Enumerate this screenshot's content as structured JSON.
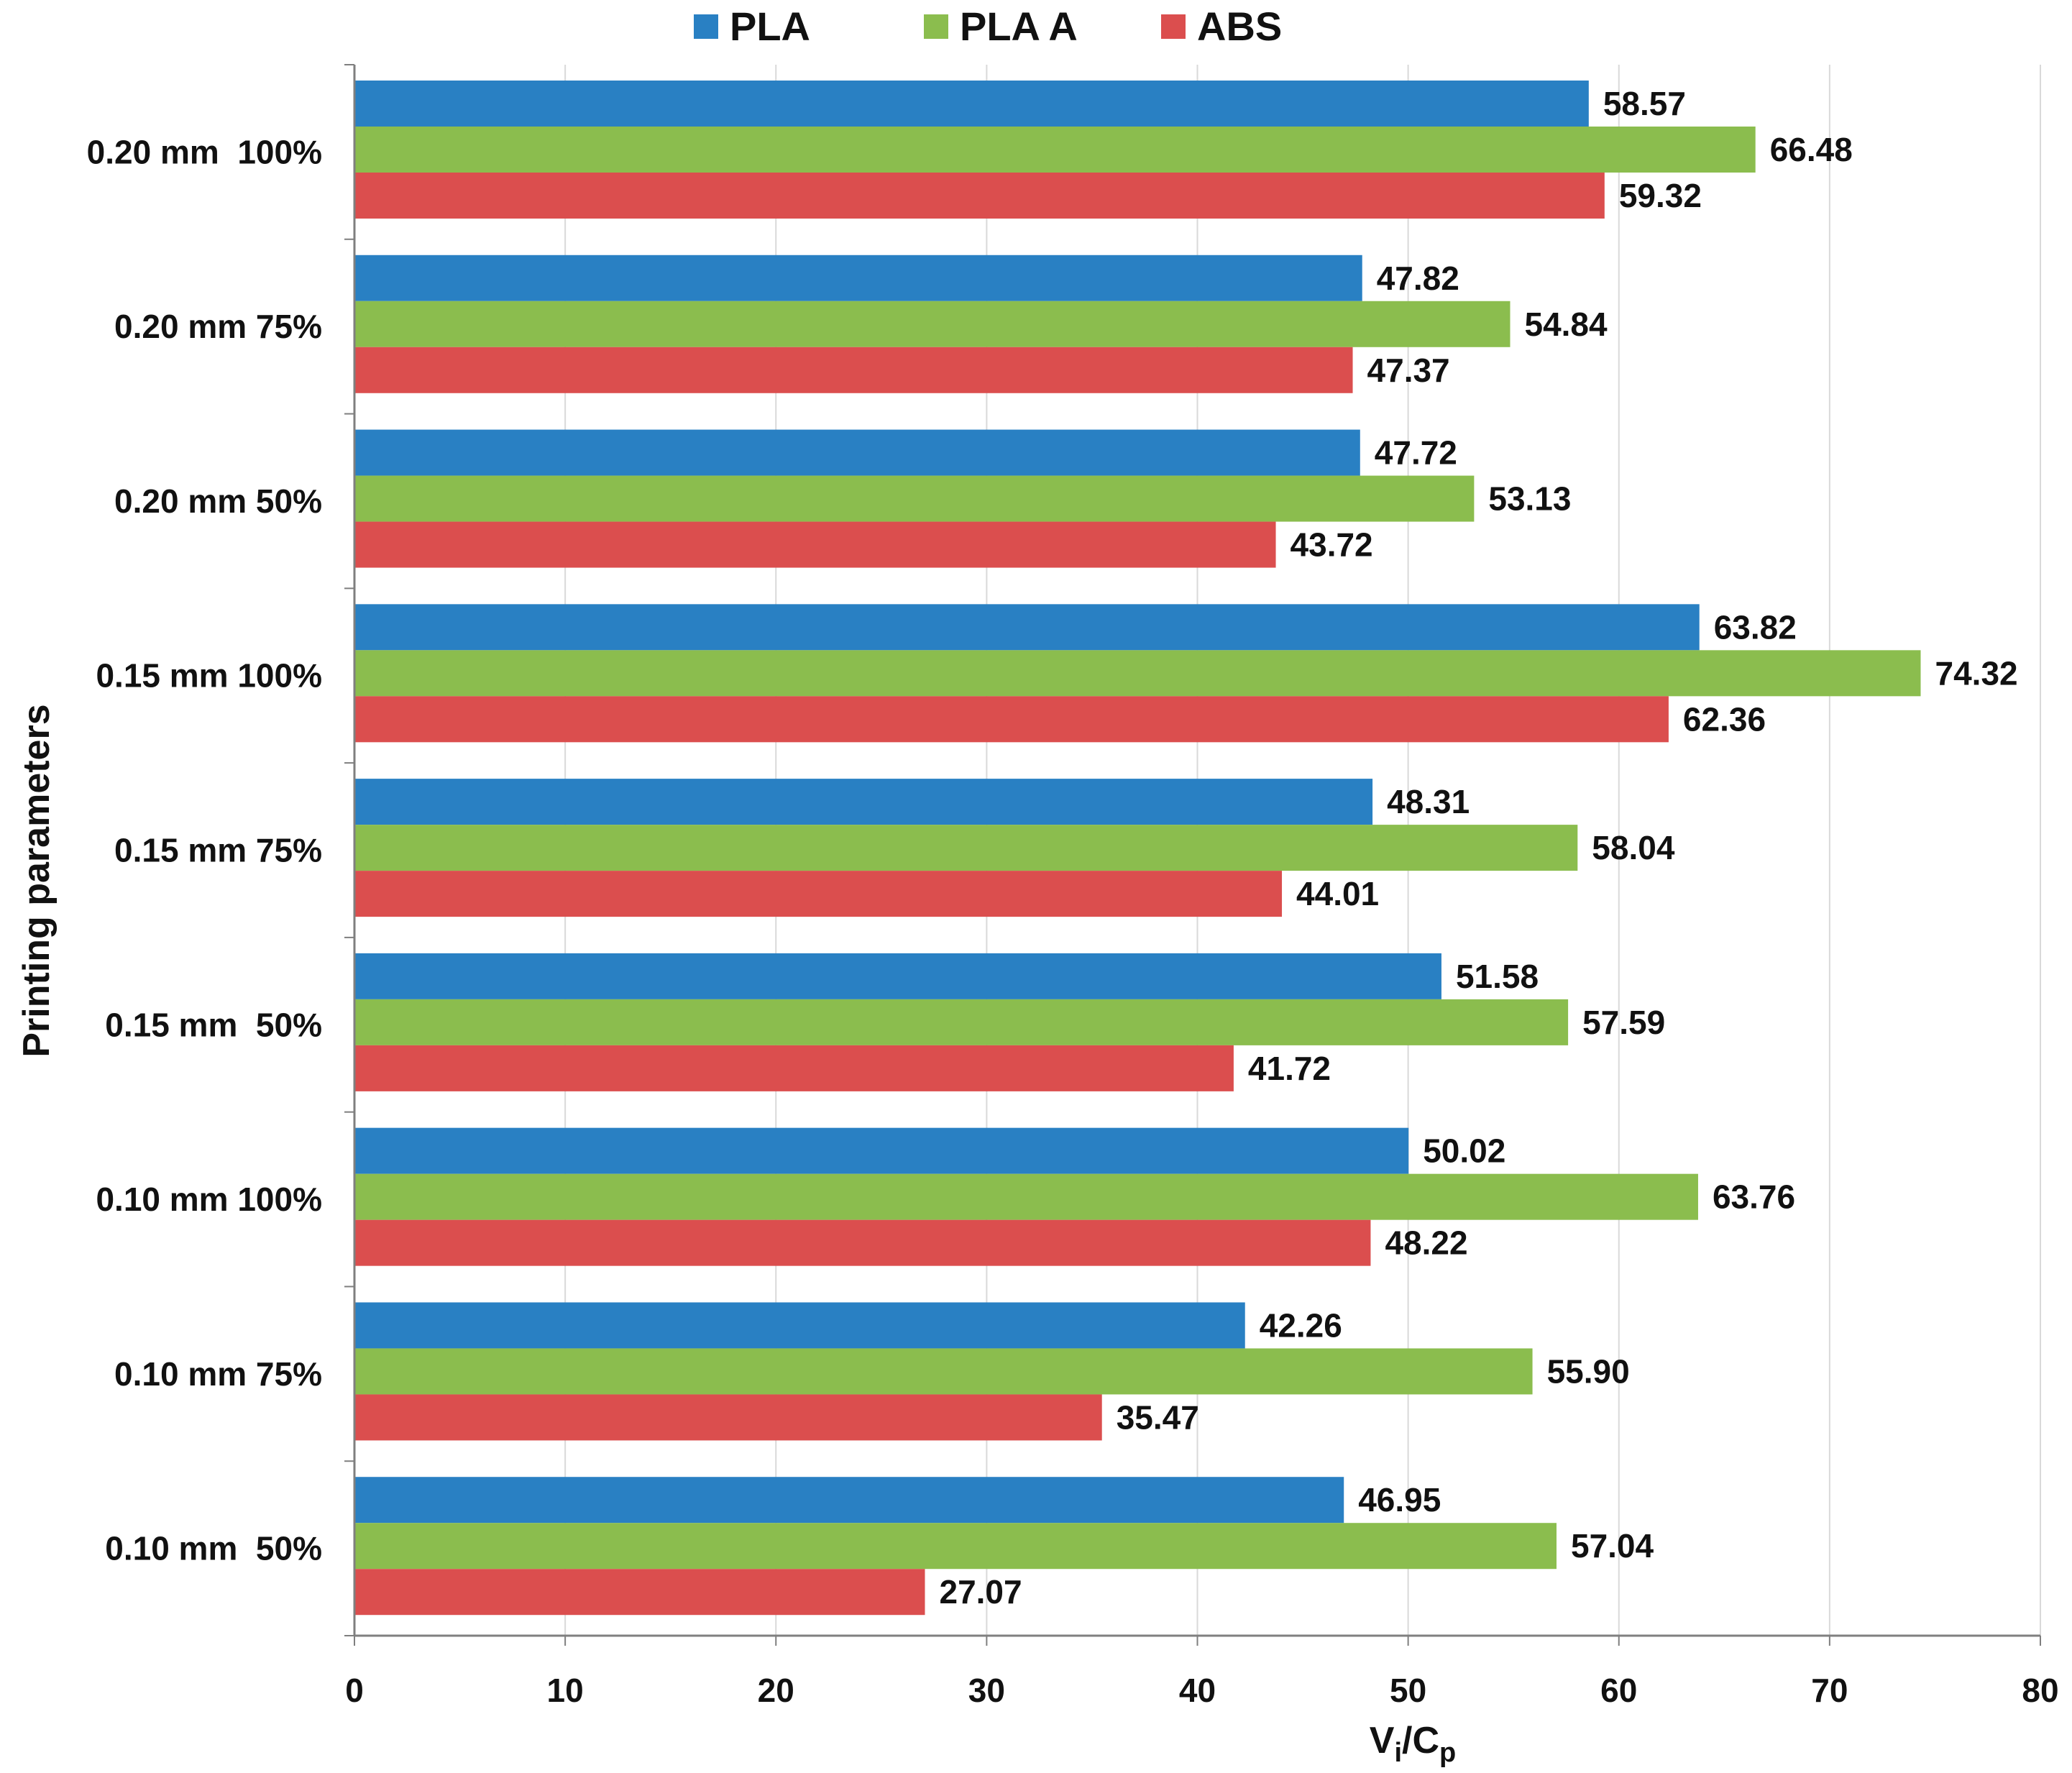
{
  "chart_data": {
    "type": "bar",
    "orientation": "horizontal",
    "title": "",
    "categories": [
      "0.20 mm  100%",
      "0.20 mm 75%",
      "0.20 mm 50%",
      "0.15 mm 100%",
      "0.15 mm 75%",
      "0.15 mm  50%",
      "0.10 mm 100%",
      "0.10 mm 75%",
      "0.10 mm  50%"
    ],
    "series": [
      {
        "name": "PLA",
        "color": "#2980C3",
        "values": [
          58.57,
          47.82,
          47.72,
          63.82,
          48.31,
          51.58,
          50.02,
          42.26,
          46.95
        ],
        "labels": [
          "58.57",
          "47.82",
          "47.72",
          "63.82",
          "48.31",
          "51.58",
          "50.02",
          "42.26",
          "46.95"
        ]
      },
      {
        "name": "PLA A",
        "color": "#8BBD4E",
        "values": [
          66.48,
          54.84,
          53.13,
          74.32,
          58.04,
          57.59,
          63.76,
          55.9,
          57.04
        ],
        "labels": [
          "66.48",
          "54.84",
          "53.13",
          "74.32",
          "58.04",
          "57.59",
          "63.76",
          "55.90",
          "57.04"
        ]
      },
      {
        "name": "ABS",
        "color": "#DB4E4E",
        "values": [
          59.32,
          47.37,
          43.72,
          62.36,
          44.01,
          41.72,
          48.22,
          35.47,
          27.07
        ],
        "labels": [
          "59.32",
          "47.37",
          "43.72",
          "62.36",
          "44.01",
          "41.72",
          "48.22",
          "35.47",
          "27.07"
        ]
      }
    ],
    "xlabel_main": "V",
    "xlabel_sub1": "i",
    "xlabel_sep": "/C",
    "xlabel_sub2": "p",
    "ylabel": "Printing parameters",
    "xlim": [
      0,
      80
    ],
    "xticks": [
      0,
      10,
      20,
      30,
      40,
      50,
      60,
      70,
      80
    ],
    "grid": true,
    "legend_position": "top-center"
  }
}
